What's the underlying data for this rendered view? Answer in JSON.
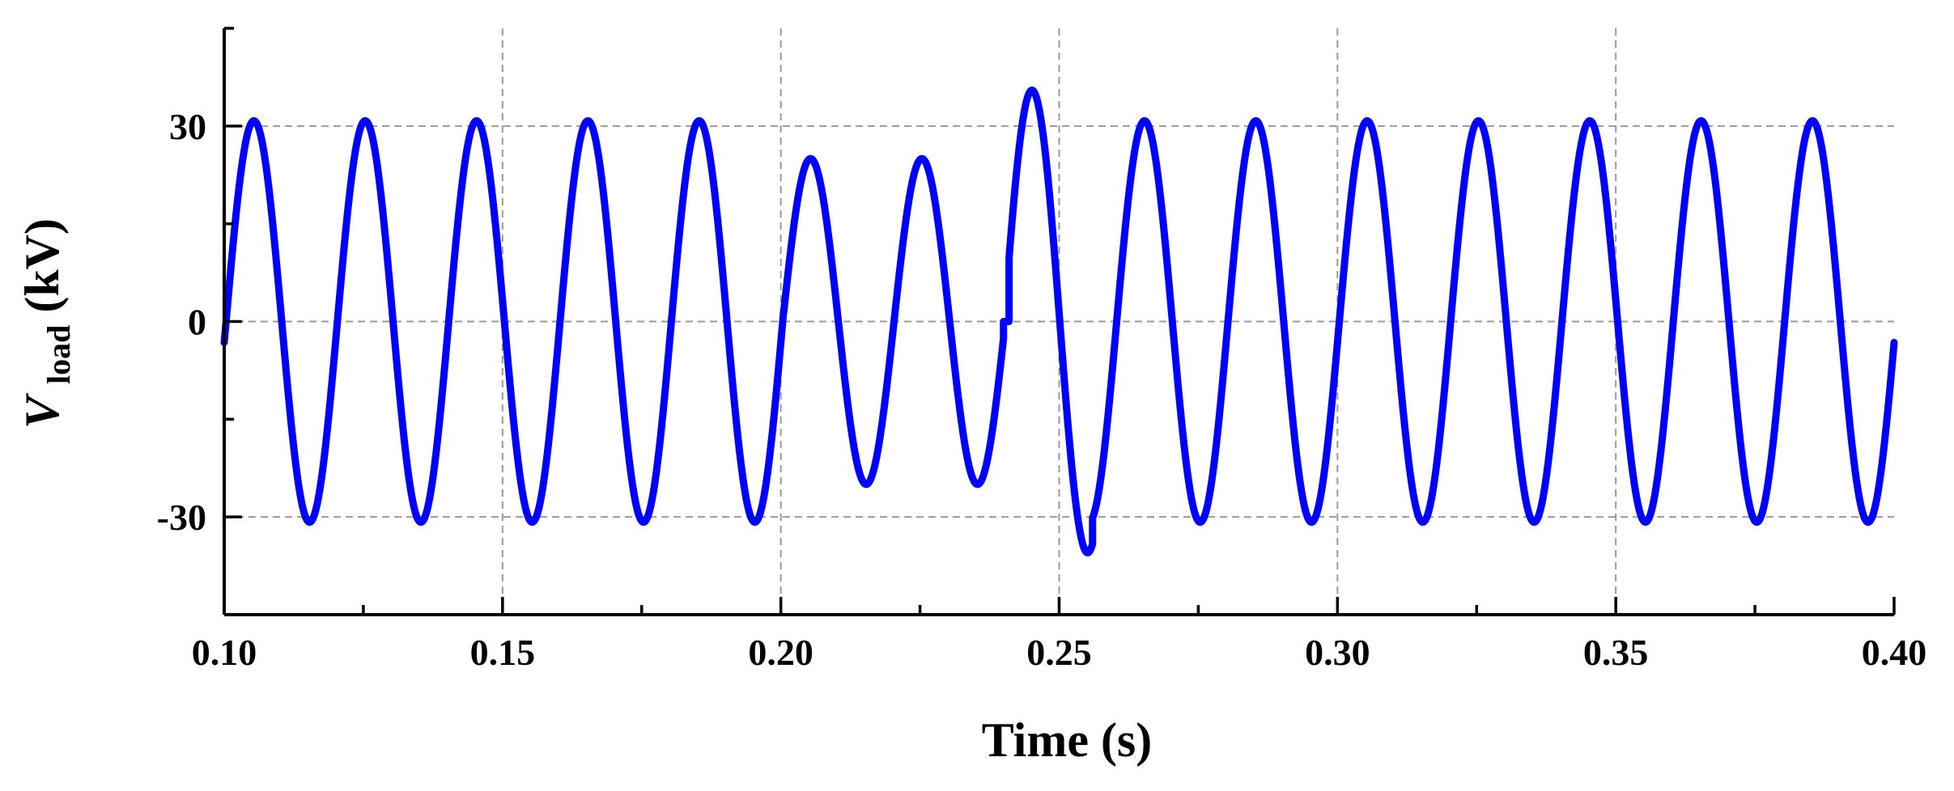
{
  "chart_data": {
    "type": "line",
    "title": "",
    "xlabel": "Time (s)",
    "ylabel": {
      "symbol": "V",
      "subscript": "load",
      "unit": " (kV)"
    },
    "xlim": [
      0.1,
      0.4
    ],
    "ylim": [
      -45,
      45
    ],
    "x_ticks": [
      0.1,
      0.15,
      0.2,
      0.25,
      0.3,
      0.35,
      0.4
    ],
    "x_tick_labels": [
      "0.10",
      "0.15",
      "0.20",
      "0.25",
      "0.30",
      "0.35",
      "0.40"
    ],
    "x_minor_step": 0.025,
    "y_ticks": [
      -30,
      0,
      30
    ],
    "y_tick_labels": [
      "-30",
      "0",
      "30"
    ],
    "y_minor_step": 15,
    "grid": true,
    "legend": "none",
    "series": [
      {
        "color": "#0000ff",
        "frequency_hz": 50,
        "signal": "sine",
        "segments": [
          {
            "t_start": 0.1,
            "t_end": 0.2005,
            "amplitude": 30.8,
            "phase_deg": -6
          },
          {
            "t_start": 0.2005,
            "t_end": 0.24,
            "amplitude": 25.0,
            "phase_deg": -6
          },
          {
            "t_start": 0.24,
            "t_end": 0.241,
            "value": 0
          },
          {
            "t_start": 0.241,
            "t_end": 0.256,
            "amplitude": 35.5,
            "phase_deg": -2
          },
          {
            "t_start": 0.256,
            "t_end": 0.4,
            "amplitude": 30.8,
            "phase_deg": -6
          }
        ]
      }
    ]
  }
}
